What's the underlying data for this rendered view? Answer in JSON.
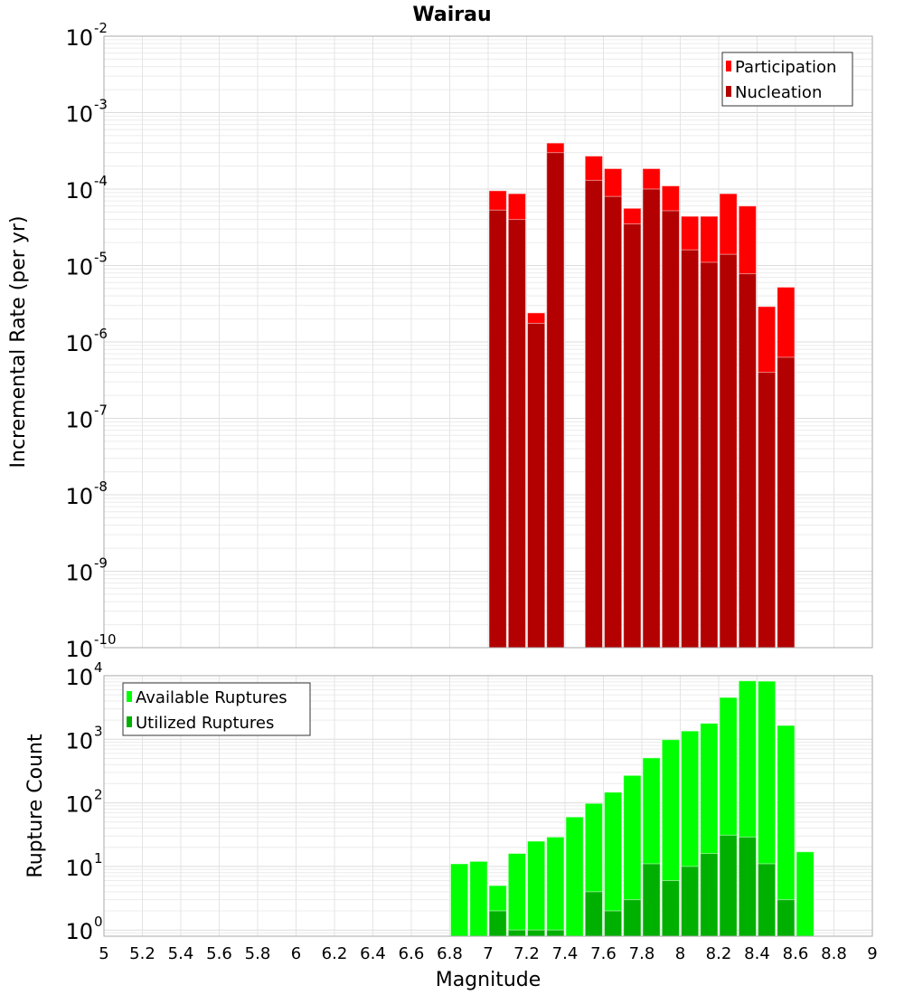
{
  "chart_data": [
    {
      "type": "bar",
      "title": "Wairau",
      "xlabel": "Magnitude",
      "ylabel": "Incremental Rate (per yr)",
      "yscale": "log",
      "ylim": [
        1e-10,
        0.01
      ],
      "xlim": [
        5,
        9
      ],
      "y_tick_exponents": [
        -10,
        -9,
        -8,
        -7,
        -6,
        -5,
        -4,
        -3,
        -2
      ],
      "y_tick_base": "10",
      "grid": true,
      "legend_placement": "top-right",
      "bin_width": 0.1,
      "x": [
        7.05,
        7.15,
        7.25,
        7.35,
        7.55,
        7.65,
        7.75,
        7.85,
        7.95,
        8.05,
        8.15,
        8.25,
        8.35,
        8.45,
        8.55
      ],
      "series": [
        {
          "name": "Participation",
          "color": "#ff0000",
          "values": [
            9.5e-05,
            8.7e-05,
            2.4e-06,
            0.0004,
            0.00027,
            0.000185,
            5.6e-05,
            0.000185,
            0.00011,
            4.4e-05,
            4.4e-05,
            8.7e-05,
            6e-05,
            2.9e-06,
            5.2e-06
          ]
        },
        {
          "name": "Nucleation",
          "color": "#b30000",
          "values": [
            5.3e-05,
            4e-05,
            1.75e-06,
            0.0003,
            0.00013,
            8e-05,
            3.5e-05,
            0.0001,
            5.2e-05,
            1.6e-05,
            1.1e-05,
            1.4e-05,
            7.8e-06,
            4e-07,
            6.3e-07
          ]
        }
      ]
    },
    {
      "type": "bar",
      "xlabel": "Magnitude",
      "ylabel": "Rupture Count",
      "yscale": "log",
      "ylim": [
        0.8,
        10000
      ],
      "xlim": [
        5,
        9
      ],
      "y_tick_exponents": [
        0,
        1,
        2,
        3,
        4
      ],
      "y_tick_base": "10",
      "x_ticks": [
        "5",
        "5.2",
        "5.4",
        "5.6",
        "5.8",
        "6",
        "6.2",
        "6.4",
        "6.6",
        "6.8",
        "7",
        "7.2",
        "7.4",
        "7.6",
        "7.8",
        "8",
        "8.2",
        "8.4",
        "8.6",
        "8.8",
        "9"
      ],
      "grid": true,
      "legend_placement": "top-left",
      "bin_width": 0.1,
      "x": [
        6.85,
        6.95,
        7.05,
        7.15,
        7.25,
        7.35,
        7.45,
        7.55,
        7.65,
        7.75,
        7.85,
        7.95,
        8.05,
        8.15,
        8.25,
        8.35,
        8.45,
        8.55,
        8.65
      ],
      "series": [
        {
          "name": "Available Ruptures",
          "color": "#00ff00",
          "values": [
            11,
            12,
            5,
            16,
            25,
            29,
            60,
            98,
            147,
            270,
            510,
            985,
            1350,
            1780,
            4550,
            8300,
            8200,
            1650,
            17
          ]
        },
        {
          "name": "Utilized Ruptures",
          "color": "#00b000",
          "values": [
            0,
            0,
            2,
            1,
            1,
            1,
            0,
            4,
            2,
            3,
            11,
            6,
            10,
            16,
            31,
            29,
            11,
            3,
            0
          ]
        }
      ]
    }
  ]
}
